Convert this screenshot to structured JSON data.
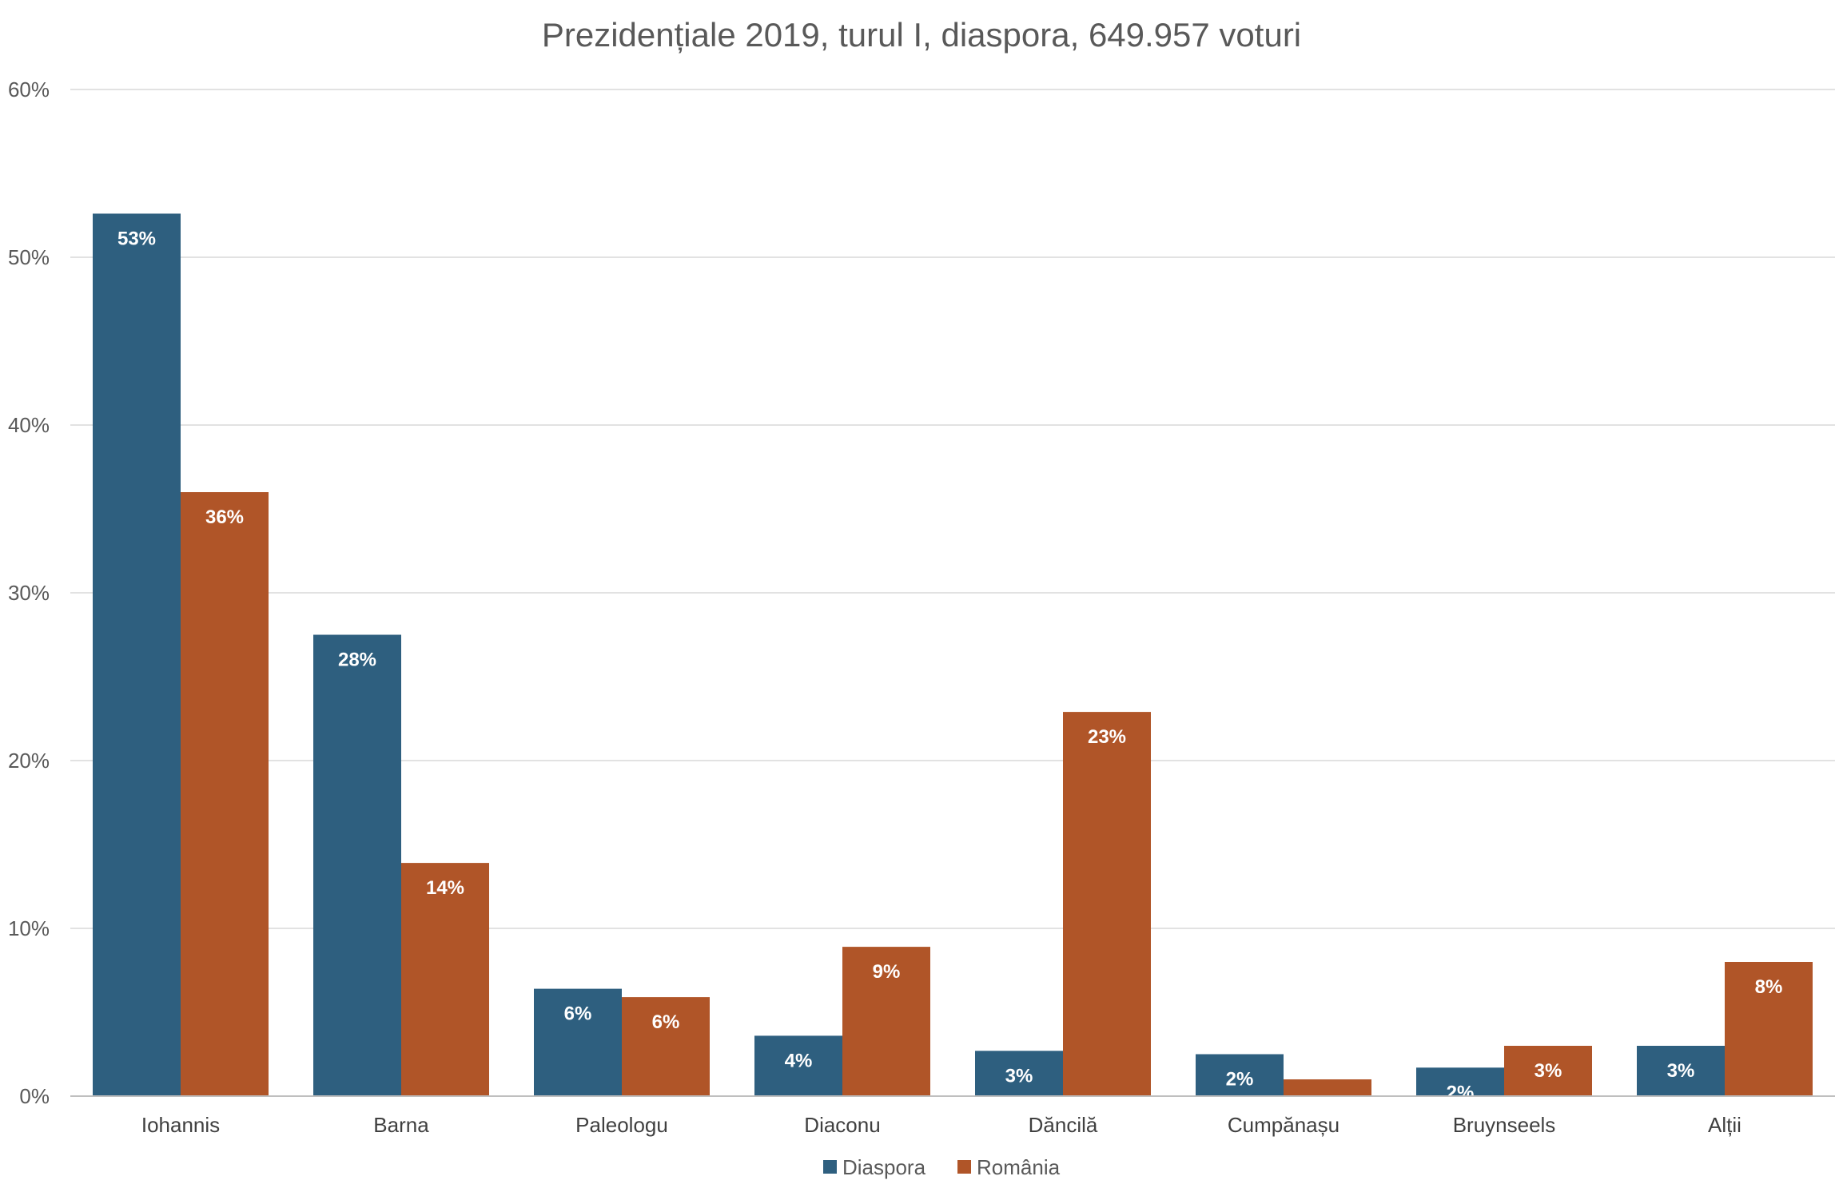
{
  "chart_data": {
    "type": "bar",
    "title": "Prezidențiale 2019, turul I, diaspora, 649.957 voturi",
    "xlabel": "",
    "ylabel": "",
    "ylim": [
      0,
      60
    ],
    "yticks": [
      0,
      10,
      20,
      30,
      40,
      50,
      60
    ],
    "ytick_labels": [
      "0%",
      "10%",
      "20%",
      "30%",
      "40%",
      "50%",
      "60%"
    ],
    "grid": true,
    "legend_position": "bottom",
    "categories": [
      "Iohannis",
      "Barna",
      "Paleologu",
      "Diaconu",
      "Dăncilă",
      "Cumpănașu",
      "Bruynseels",
      "Alții"
    ],
    "series": [
      {
        "name": "Diaspora",
        "color": "#2e5f7f",
        "values": [
          52.6,
          27.5,
          6.4,
          3.6,
          2.7,
          2.5,
          1.7,
          3.0
        ],
        "labels": [
          "53%",
          "28%",
          "6%",
          "4%",
          "3%",
          "2%",
          "2%",
          "3%"
        ]
      },
      {
        "name": "România",
        "color": "#b05528",
        "values": [
          36.0,
          13.9,
          5.9,
          8.9,
          22.9,
          1.0,
          3.0,
          8.0
        ],
        "labels": [
          "36%",
          "14%",
          "6%",
          "9%",
          "23%",
          "",
          "3%",
          "8%"
        ]
      }
    ]
  }
}
